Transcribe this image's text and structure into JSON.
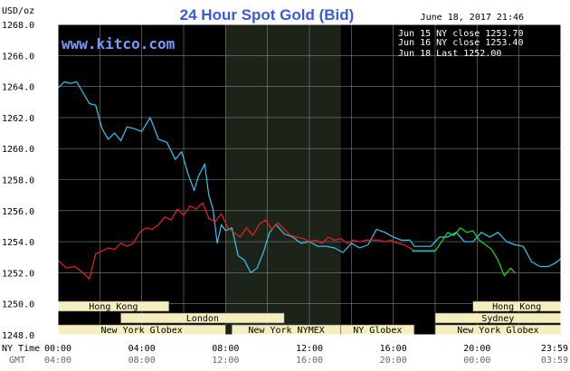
{
  "header": {
    "title": "24 Hour Spot Gold (Bid)",
    "datetime": "June 18, 2017 21:46",
    "y_unit": "USD/oz",
    "watermark": "www.kitco.com"
  },
  "colors": {
    "background": "#000000",
    "frame": "#ffffff",
    "grid": "#808080",
    "title": "#3a5bd8",
    "header_text": "#000000",
    "watermark": "#6fa0ff",
    "session_fill": "#f5efc0",
    "session_text": "#000000",
    "shade": "#1c2419",
    "tick_text": "#000000",
    "tick_text_gmt": "#666666",
    "legend_text": "#ffffff",
    "series_jun15": "#33c8f0",
    "series_jun16": "#ee1f1f",
    "series_jun18": "#22dd22",
    "series_flat": "#22aa99"
  },
  "chart_data": {
    "type": "line",
    "title": "24 Hour Spot Gold (Bid)",
    "ylabel": "USD/oz",
    "ylim": [
      1248.0,
      1268.0
    ],
    "yticks": [
      "1248.0",
      "1250.0",
      "1252.0",
      "1254.0",
      "1256.0",
      "1258.0",
      "1260.0",
      "1262.0",
      "1264.0",
      "1266.0",
      "1268.0"
    ],
    "xlim": [
      0,
      24
    ],
    "x_axis_labels": [
      "NY Time",
      "GMT"
    ],
    "xticks_ny": [
      "00:00",
      "04:00",
      "08:00",
      "12:00",
      "16:00",
      "20:00",
      "23:59"
    ],
    "xticks_gmt": [
      "04:00",
      "08:00",
      "12:00",
      "16:00",
      "20:00",
      "00:00",
      "03:59"
    ],
    "shaded_x": [
      8.0,
      13.5
    ],
    "grid": true,
    "legend_position": "top-right",
    "legend": [
      {
        "label": "Jun 15 NY close 1253.70"
      },
      {
        "label": "Jun 16 NY close 1253.40"
      },
      {
        "label": "Jun 18 Last 1252.00"
      }
    ],
    "sessions": [
      {
        "name": "Hong Kong",
        "start": 0.0,
        "end": 5.3,
        "row": 0
      },
      {
        "name": "Hong Kong",
        "start": 19.8,
        "end": 23.99,
        "row": 0
      },
      {
        "name": "London",
        "start": 3.0,
        "end": 10.8,
        "row": 1
      },
      {
        "name": "Sydney",
        "start": 18.0,
        "end": 23.99,
        "row": 1
      },
      {
        "name": "New York Globex",
        "start": 0.0,
        "end": 8.0,
        "row": 2
      },
      {
        "name": "New York NYMEX",
        "start": 8.3,
        "end": 13.5,
        "row": 2
      },
      {
        "name": "NY Globex",
        "start": 13.5,
        "end": 17.0,
        "row": 2
      },
      {
        "name": "New York Globex",
        "start": 18.0,
        "end": 23.99,
        "row": 2
      }
    ],
    "series": [
      {
        "name": "Jun 15",
        "x": [
          0.0,
          0.3,
          0.6,
          0.9,
          1.2,
          1.5,
          1.8,
          2.1,
          2.4,
          2.7,
          3.0,
          3.3,
          3.6,
          4.0,
          4.4,
          4.8,
          5.2,
          5.6,
          5.9,
          6.2,
          6.5,
          6.7,
          7.0,
          7.2,
          7.4,
          7.6,
          7.8,
          8.0,
          8.3,
          8.6,
          8.9,
          9.2,
          9.5,
          9.8,
          10.1,
          10.4,
          10.8,
          11.2,
          11.6,
          12.0,
          12.4,
          12.8,
          13.2,
          13.6,
          14.0,
          14.4,
          14.8,
          15.2,
          15.6,
          16.0,
          16.4,
          16.8,
          17.0,
          17.4,
          17.8,
          18.2,
          18.6,
          19.0,
          19.4,
          19.8,
          20.2,
          20.6,
          21.0,
          21.4,
          21.8,
          22.2,
          22.6,
          23.0,
          23.4,
          23.7,
          23.99
        ],
        "y": [
          1263.9,
          1264.3,
          1264.2,
          1264.3,
          1263.6,
          1262.9,
          1262.8,
          1261.3,
          1260.6,
          1261.0,
          1260.5,
          1261.4,
          1261.3,
          1261.1,
          1262.0,
          1260.6,
          1260.4,
          1259.3,
          1259.8,
          1258.4,
          1257.3,
          1258.2,
          1259.0,
          1257.0,
          1256.1,
          1253.9,
          1255.1,
          1254.7,
          1254.9,
          1253.1,
          1252.8,
          1252.0,
          1252.3,
          1253.3,
          1254.6,
          1255.1,
          1254.5,
          1254.3,
          1253.9,
          1254.0,
          1253.7,
          1253.7,
          1253.6,
          1253.3,
          1253.9,
          1253.6,
          1253.8,
          1254.8,
          1254.6,
          1254.3,
          1254.1,
          1254.1,
          1253.7,
          1253.7,
          1253.7,
          1254.3,
          1254.3,
          1254.6,
          1254.0,
          1254.0,
          1254.6,
          1254.3,
          1254.6,
          1254.0,
          1253.8,
          1253.7,
          1252.7,
          1252.4,
          1252.4,
          1252.6,
          1252.9
        ]
      },
      {
        "name": "Jun 16",
        "x": [
          0.0,
          0.4,
          0.8,
          1.2,
          1.5,
          1.8,
          2.1,
          2.4,
          2.7,
          3.0,
          3.3,
          3.6,
          3.9,
          4.2,
          4.5,
          4.8,
          5.1,
          5.4,
          5.7,
          6.0,
          6.3,
          6.6,
          6.9,
          7.2,
          7.5,
          7.8,
          8.1,
          8.4,
          8.7,
          9.0,
          9.3,
          9.6,
          9.9,
          10.2,
          10.5,
          10.8,
          11.1,
          11.4,
          11.7,
          12.0,
          12.3,
          12.6,
          12.9,
          13.2,
          13.5,
          13.8,
          14.1,
          14.4,
          14.7,
          15.0,
          15.3,
          15.6,
          15.9,
          16.2,
          16.5,
          16.8,
          17.0
        ],
        "y": [
          1252.8,
          1252.3,
          1252.4,
          1252.0,
          1251.6,
          1253.2,
          1253.4,
          1253.6,
          1253.5,
          1253.9,
          1253.7,
          1253.9,
          1254.6,
          1254.9,
          1254.8,
          1255.1,
          1255.6,
          1255.4,
          1256.1,
          1255.7,
          1256.3,
          1256.1,
          1256.5,
          1255.5,
          1255.3,
          1255.8,
          1254.9,
          1254.6,
          1254.3,
          1254.9,
          1254.4,
          1255.1,
          1255.4,
          1254.8,
          1255.2,
          1254.8,
          1254.4,
          1254.3,
          1254.2,
          1254.0,
          1254.1,
          1253.9,
          1254.3,
          1254.1,
          1254.2,
          1253.9,
          1254.1,
          1254.0,
          1254.1,
          1254.1,
          1254.1,
          1254.0,
          1254.1,
          1253.9,
          1253.8,
          1253.6,
          1253.4
        ]
      },
      {
        "name": "Jun 18",
        "x": [
          18.0,
          18.3,
          18.6,
          18.9,
          19.2,
          19.5,
          19.8,
          20.1,
          20.4,
          20.7,
          21.0,
          21.3,
          21.6,
          21.8
        ],
        "y": [
          1253.4,
          1254.0,
          1254.6,
          1254.4,
          1254.9,
          1254.6,
          1254.7,
          1254.1,
          1253.8,
          1253.5,
          1252.8,
          1251.8,
          1252.3,
          1252.0
        ]
      }
    ],
    "flat_segments": [
      {
        "x": [
          16.9,
          18.0
        ],
        "y": [
          1253.4,
          1253.4
        ]
      }
    ]
  }
}
